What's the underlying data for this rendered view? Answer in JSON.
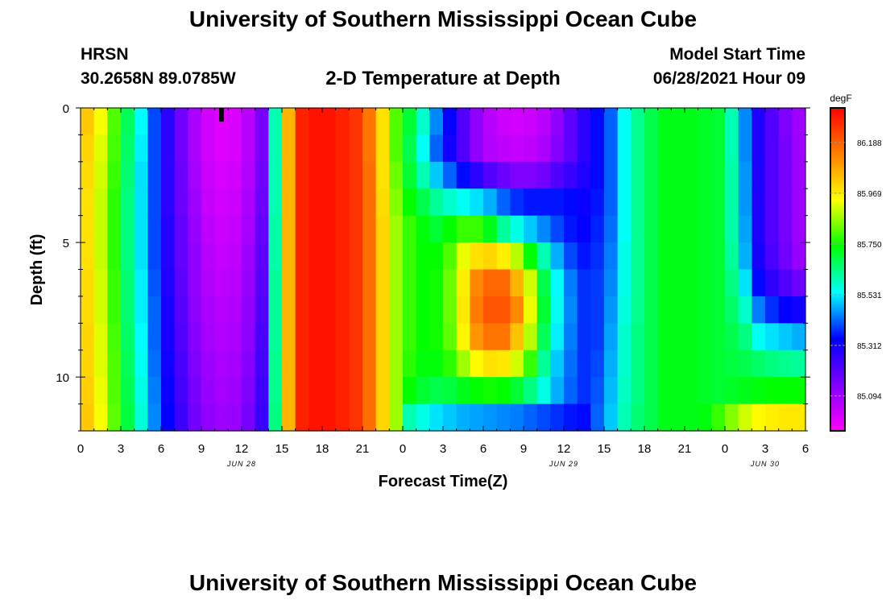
{
  "header": {
    "title": "University of Southern Mississippi Ocean Cube",
    "station": "HRSN",
    "coordinates": "30.2658N  89.0785W",
    "subtitle": "2-D Temperature at Depth",
    "model_start_label": "Model Start Time",
    "model_start_value": "06/28/2021 Hour 09"
  },
  "footer": {
    "title": "University of Southern Mississippi Ocean Cube"
  },
  "chart_data": {
    "type": "heatmap",
    "title": "2-D Temperature at Depth",
    "xlabel": "Forecast Time(Z)",
    "ylabel": "Depth (ft)",
    "x_tick_labels": [
      "0",
      "3",
      "6",
      "9",
      "12",
      "15",
      "18",
      "21",
      "0",
      "3",
      "6",
      "9",
      "12",
      "15",
      "18",
      "21",
      "0",
      "3",
      "6"
    ],
    "x_range_hours": [
      0,
      54
    ],
    "date_labels": [
      {
        "text": "JUN 28",
        "at_hour": 12
      },
      {
        "text": "JUN 29",
        "at_hour": 36
      },
      {
        "text": "JUN 30",
        "at_hour": 51
      }
    ],
    "y_ticks": [
      "0",
      "5",
      "10"
    ],
    "y_range_ft": [
      0,
      12
    ],
    "y_reversed": true,
    "colorbar": {
      "unit": "degF",
      "tick_labels": [
        "86.188",
        "85.969",
        "85.750",
        "85.531",
        "85.312",
        "85.094"
      ],
      "tick_values": [
        86.188,
        85.969,
        85.75,
        85.531,
        85.312,
        85.094
      ],
      "range": [
        84.95,
        86.33
      ],
      "colors_low_to_high": [
        "#ff00ff",
        "#8000ff",
        "#0000ff",
        "#00ffff",
        "#00ff00",
        "#ffff00",
        "#ff8000",
        "#ff0000"
      ]
    },
    "hours": [
      0.5,
      1.5,
      2.5,
      3.5,
      4.5,
      5.5,
      6.5,
      7.5,
      8.5,
      9.5,
      10.5,
      11.5,
      12.5,
      13.5,
      14.5,
      15.5,
      16.5,
      17.5,
      18.5,
      19.5,
      20.5,
      21.5,
      22.5,
      23.5,
      24.5,
      25.5,
      26.5,
      27.5,
      28.5,
      29.5,
      30.5,
      31.5,
      32.5,
      33.5,
      34.5,
      35.5,
      36.5,
      37.5,
      38.5,
      39.5,
      40.5,
      41.5,
      42.5,
      43.5,
      44.5,
      45.5,
      46.5,
      47.5,
      48.5,
      49.5,
      50.5,
      51.5,
      52.5,
      53.5
    ],
    "depth_levels_ft": [
      0.5,
      1.5,
      2.5,
      3.5,
      4.5,
      5.5,
      6.5,
      7.5,
      8.5,
      9.5,
      10.5,
      11.5
    ],
    "temperatures_degF": [
      [
        86.02,
        85.93,
        85.8,
        85.67,
        85.54,
        85.4,
        85.28,
        85.17,
        85.08,
        85.02,
        85.0,
        85.01,
        85.06,
        85.16,
        85.6,
        86.05,
        86.28,
        86.3,
        86.3,
        86.28,
        86.25,
        86.15,
        85.98,
        85.8,
        85.7,
        85.58,
        85.45,
        85.34,
        85.22,
        85.12,
        85.06,
        85.03,
        85.02,
        85.03,
        85.06,
        85.12,
        85.2,
        85.28,
        85.35,
        85.42,
        85.55,
        85.63,
        85.68,
        85.72,
        85.72,
        85.72,
        85.71,
        85.7,
        85.6,
        85.45,
        85.3,
        85.22,
        85.15,
        85.1
      ],
      [
        86.0,
        85.91,
        85.79,
        85.66,
        85.53,
        85.4,
        85.28,
        85.17,
        85.08,
        85.02,
        85.0,
        85.01,
        85.06,
        85.16,
        85.6,
        86.05,
        86.28,
        86.3,
        86.3,
        86.28,
        86.25,
        86.15,
        85.98,
        85.8,
        85.68,
        85.55,
        85.42,
        85.32,
        85.22,
        85.12,
        85.07,
        85.05,
        85.04,
        85.05,
        85.08,
        85.14,
        85.2,
        85.28,
        85.35,
        85.42,
        85.55,
        85.63,
        85.68,
        85.72,
        85.72,
        85.72,
        85.71,
        85.7,
        85.6,
        85.45,
        85.3,
        85.22,
        85.16,
        85.1
      ],
      [
        85.99,
        85.9,
        85.78,
        85.65,
        85.52,
        85.4,
        85.28,
        85.18,
        85.09,
        85.03,
        85.01,
        85.02,
        85.07,
        85.17,
        85.6,
        86.05,
        86.28,
        86.3,
        86.3,
        86.28,
        86.25,
        86.16,
        85.98,
        85.82,
        85.7,
        85.6,
        85.5,
        85.42,
        85.35,
        85.28,
        85.22,
        85.18,
        85.15,
        85.15,
        85.17,
        85.22,
        85.26,
        85.3,
        85.35,
        85.42,
        85.55,
        85.63,
        85.68,
        85.72,
        85.72,
        85.72,
        85.71,
        85.7,
        85.61,
        85.46,
        85.3,
        85.22,
        85.16,
        85.1
      ],
      [
        85.98,
        85.89,
        85.77,
        85.64,
        85.52,
        85.4,
        85.28,
        85.18,
        85.1,
        85.04,
        85.02,
        85.03,
        85.08,
        85.18,
        85.6,
        86.05,
        86.28,
        86.3,
        86.3,
        86.28,
        86.25,
        86.16,
        85.99,
        85.84,
        85.74,
        85.68,
        85.62,
        85.58,
        85.55,
        85.52,
        85.48,
        85.42,
        85.38,
        85.36,
        85.36,
        85.36,
        85.35,
        85.33,
        85.36,
        85.42,
        85.55,
        85.63,
        85.68,
        85.72,
        85.72,
        85.72,
        85.71,
        85.7,
        85.61,
        85.46,
        85.3,
        85.22,
        85.16,
        85.1
      ],
      [
        85.98,
        85.89,
        85.77,
        85.64,
        85.52,
        85.4,
        85.29,
        85.19,
        85.11,
        85.05,
        85.03,
        85.04,
        85.09,
        85.19,
        85.61,
        86.05,
        86.28,
        86.3,
        86.3,
        86.28,
        86.25,
        86.16,
        86.0,
        85.86,
        85.78,
        85.73,
        85.7,
        85.74,
        85.78,
        85.78,
        85.72,
        85.62,
        85.56,
        85.5,
        85.45,
        85.4,
        85.36,
        85.34,
        85.37,
        85.43,
        85.55,
        85.63,
        85.68,
        85.72,
        85.72,
        85.72,
        85.71,
        85.7,
        85.61,
        85.47,
        85.3,
        85.22,
        85.16,
        85.1
      ],
      [
        85.98,
        85.89,
        85.77,
        85.64,
        85.52,
        85.4,
        85.29,
        85.19,
        85.12,
        85.06,
        85.04,
        85.05,
        85.1,
        85.2,
        85.61,
        86.05,
        86.28,
        86.3,
        86.3,
        86.28,
        86.25,
        86.16,
        86.0,
        85.86,
        85.78,
        85.74,
        85.74,
        85.8,
        85.92,
        85.98,
        86.0,
        85.96,
        85.88,
        85.74,
        85.6,
        85.48,
        85.4,
        85.36,
        85.38,
        85.44,
        85.56,
        85.63,
        85.68,
        85.72,
        85.72,
        85.72,
        85.71,
        85.7,
        85.62,
        85.48,
        85.31,
        85.23,
        85.17,
        85.11
      ],
      [
        85.99,
        85.9,
        85.78,
        85.65,
        85.53,
        85.41,
        85.3,
        85.2,
        85.12,
        85.07,
        85.05,
        85.06,
        85.11,
        85.21,
        85.62,
        86.05,
        86.28,
        86.3,
        86.3,
        86.28,
        86.25,
        86.16,
        86.0,
        85.86,
        85.78,
        85.74,
        85.75,
        85.82,
        85.96,
        86.12,
        86.17,
        86.17,
        86.05,
        85.9,
        85.68,
        85.54,
        85.44,
        85.38,
        85.39,
        85.45,
        85.56,
        85.63,
        85.68,
        85.72,
        85.72,
        85.72,
        85.71,
        85.7,
        85.64,
        85.52,
        85.35,
        85.27,
        85.22,
        85.18
      ],
      [
        85.99,
        85.9,
        85.78,
        85.65,
        85.53,
        85.42,
        85.31,
        85.21,
        85.13,
        85.08,
        85.06,
        85.07,
        85.12,
        85.22,
        85.62,
        86.05,
        86.28,
        86.3,
        86.3,
        86.28,
        86.25,
        86.16,
        86.0,
        85.86,
        85.78,
        85.74,
        85.75,
        85.82,
        85.97,
        86.14,
        86.2,
        86.2,
        86.12,
        85.92,
        85.7,
        85.55,
        85.45,
        85.38,
        85.39,
        85.46,
        85.57,
        85.63,
        85.68,
        85.72,
        85.72,
        85.72,
        85.71,
        85.7,
        85.66,
        85.58,
        85.44,
        85.38,
        85.34,
        85.32
      ],
      [
        86.0,
        85.91,
        85.79,
        85.66,
        85.54,
        85.42,
        85.31,
        85.22,
        85.14,
        85.09,
        85.07,
        85.08,
        85.13,
        85.23,
        85.62,
        86.05,
        86.28,
        86.3,
        86.3,
        86.28,
        86.25,
        86.16,
        86.0,
        85.86,
        85.78,
        85.74,
        85.75,
        85.81,
        85.95,
        86.1,
        86.15,
        86.15,
        86.03,
        85.88,
        85.67,
        85.53,
        85.44,
        85.38,
        85.39,
        85.47,
        85.58,
        85.64,
        85.68,
        85.72,
        85.72,
        85.72,
        85.71,
        85.7,
        85.68,
        85.64,
        85.55,
        85.52,
        85.5,
        85.48
      ],
      [
        86.0,
        85.91,
        85.8,
        85.67,
        85.55,
        85.43,
        85.32,
        85.23,
        85.15,
        85.1,
        85.08,
        85.09,
        85.14,
        85.24,
        85.63,
        86.05,
        86.28,
        86.3,
        86.3,
        86.28,
        86.25,
        86.16,
        86.0,
        85.86,
        85.77,
        85.73,
        85.73,
        85.77,
        85.86,
        85.94,
        85.98,
        85.97,
        85.9,
        85.78,
        85.62,
        85.5,
        85.43,
        85.38,
        85.4,
        85.48,
        85.58,
        85.64,
        85.68,
        85.72,
        85.72,
        85.72,
        85.71,
        85.7,
        85.69,
        85.68,
        85.66,
        85.64,
        85.63,
        85.62
      ],
      [
        86.01,
        85.92,
        85.8,
        85.68,
        85.56,
        85.44,
        85.33,
        85.24,
        85.16,
        85.11,
        85.09,
        85.1,
        85.15,
        85.25,
        85.63,
        86.05,
        86.28,
        86.3,
        86.3,
        86.28,
        86.25,
        86.16,
        86.0,
        85.86,
        85.74,
        85.7,
        85.68,
        85.69,
        85.72,
        85.74,
        85.75,
        85.74,
        85.7,
        85.64,
        85.56,
        85.48,
        85.42,
        85.38,
        85.41,
        85.49,
        85.59,
        85.64,
        85.68,
        85.72,
        85.72,
        85.72,
        85.71,
        85.7,
        85.71,
        85.72,
        85.73,
        85.74,
        85.74,
        85.74
      ],
      [
        86.02,
        85.93,
        85.81,
        85.69,
        85.57,
        85.45,
        85.34,
        85.25,
        85.17,
        85.12,
        85.1,
        85.11,
        85.16,
        85.26,
        85.64,
        86.05,
        86.28,
        86.3,
        86.3,
        86.28,
        86.25,
        86.16,
        86.0,
        85.86,
        85.6,
        85.56,
        85.52,
        85.5,
        85.48,
        85.47,
        85.46,
        85.45,
        85.44,
        85.42,
        85.4,
        85.38,
        85.36,
        85.35,
        85.42,
        85.5,
        85.6,
        85.65,
        85.68,
        85.72,
        85.72,
        85.72,
        85.73,
        85.78,
        85.84,
        85.9,
        85.94,
        85.96,
        85.97,
        85.97
      ]
    ],
    "markers": [
      {
        "type": "current-time",
        "hour": 10.5
      }
    ]
  }
}
